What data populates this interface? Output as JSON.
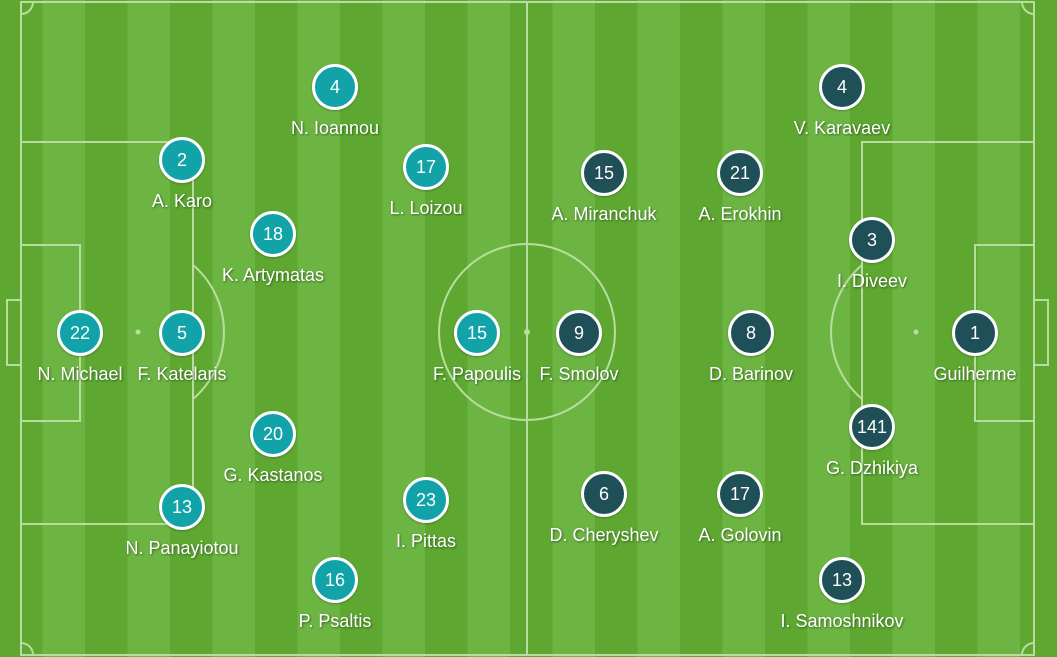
{
  "colors": {
    "home": "#12a3a8",
    "away": "#1f4f57",
    "grass_dark": "#5ea832",
    "grass_light": "#6db543",
    "lines": "#b9dd9f"
  },
  "home": [
    {
      "number": "22",
      "name": "N. Michael"
    },
    {
      "number": "5",
      "name": "F. Katelaris"
    },
    {
      "number": "2",
      "name": "A. Karo"
    },
    {
      "number": "13",
      "name": "N. Panayiotou"
    },
    {
      "number": "18",
      "name": "K. Artymatas"
    },
    {
      "number": "20",
      "name": "G. Kastanos"
    },
    {
      "number": "4",
      "name": "N. Ioannou"
    },
    {
      "number": "16",
      "name": "P. Psaltis"
    },
    {
      "number": "17",
      "name": "L. Loizou"
    },
    {
      "number": "23",
      "name": "I. Pittas"
    },
    {
      "number": "15",
      "name": "F. Papoulis"
    }
  ],
  "away": [
    {
      "number": "9",
      "name": "F. Smolov"
    },
    {
      "number": "15",
      "name": "A. Miranchuk"
    },
    {
      "number": "21",
      "name": "A. Erokhin"
    },
    {
      "number": "6",
      "name": "D. Cheryshev"
    },
    {
      "number": "17",
      "name": "A. Golovin"
    },
    {
      "number": "8",
      "name": "D. Barinov"
    },
    {
      "number": "4",
      "name": "V. Karavaev"
    },
    {
      "number": "3",
      "name": "I. Diveev"
    },
    {
      "number": "141",
      "name": "G. Dzhikiya"
    },
    {
      "number": "13",
      "name": "I. Samoshnikov"
    },
    {
      "number": "1",
      "name": "Guilherme"
    }
  ]
}
